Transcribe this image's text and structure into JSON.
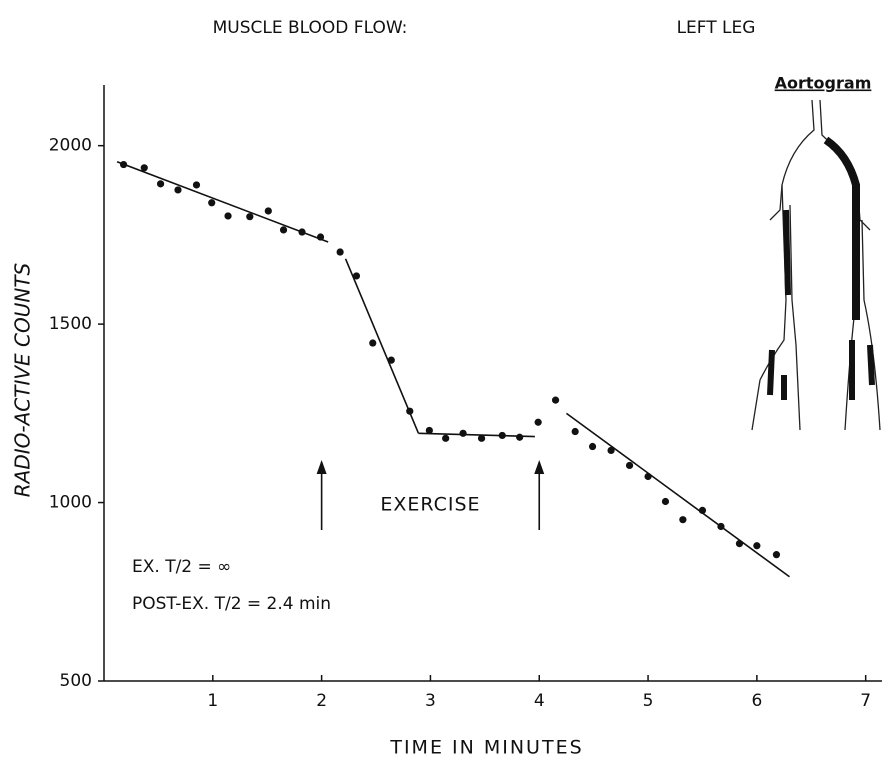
{
  "chart_data": {
    "type": "scatter",
    "title": "MUSCLE BLOOD FLOW:",
    "subtitle": "LEFT LEG",
    "x_label": "TIME IN MINUTES",
    "y_label": "RADIO-ACTIVE COUNTS",
    "x": [
      0.18,
      0.37,
      0.52,
      0.68,
      0.85,
      0.99,
      1.14,
      1.34,
      1.51,
      1.65,
      1.82,
      1.99,
      2.17,
      2.32,
      2.47,
      2.64,
      2.81,
      2.99,
      3.14,
      3.3,
      3.47,
      3.66,
      3.82,
      3.99,
      4.15,
      4.33,
      4.49,
      4.66,
      4.83,
      5.0,
      5.16,
      5.32,
      5.5,
      5.67,
      5.84,
      6.0,
      6.18
    ],
    "series": [
      {
        "color": "#111111",
        "values": [
          1947,
          1938,
          1893,
          1876,
          1890,
          1840,
          1803,
          1801,
          1817,
          1764,
          1758,
          1744,
          1702,
          1635,
          1447,
          1399,
          1256,
          1202,
          1180,
          1194,
          1180,
          1188,
          1183,
          1225,
          1287,
          1199,
          1157,
          1146,
          1104,
          1073,
          1003,
          952,
          978,
          933,
          885,
          879,
          854
        ]
      }
    ],
    "fit_lines": [
      {
        "x": [
          0.12,
          2.06
        ],
        "values": [
          1955,
          1730
        ]
      },
      {
        "x": [
          2.22,
          2.89
        ],
        "values": [
          1683,
          1194
        ]
      },
      {
        "x": [
          2.89,
          3.96
        ],
        "values": [
          1194,
          1185
        ]
      },
      {
        "x": [
          4.25,
          6.3
        ],
        "values": [
          1250,
          792
        ]
      }
    ],
    "arrows": {
      "x": [
        2,
        4
      ],
      "label": "EXERCISE"
    },
    "annotations": [
      "EX. T/2 = ∞",
      "POST-EX. T/2 = 2.4 min"
    ],
    "inset_label": "Aortogram",
    "xlim": [
      0,
      7.15
    ],
    "ylim": [
      500,
      2170
    ],
    "xticks": [
      1,
      2,
      3,
      4,
      5,
      6,
      7
    ],
    "yticks": [
      500,
      1000,
      1500,
      2000
    ]
  }
}
